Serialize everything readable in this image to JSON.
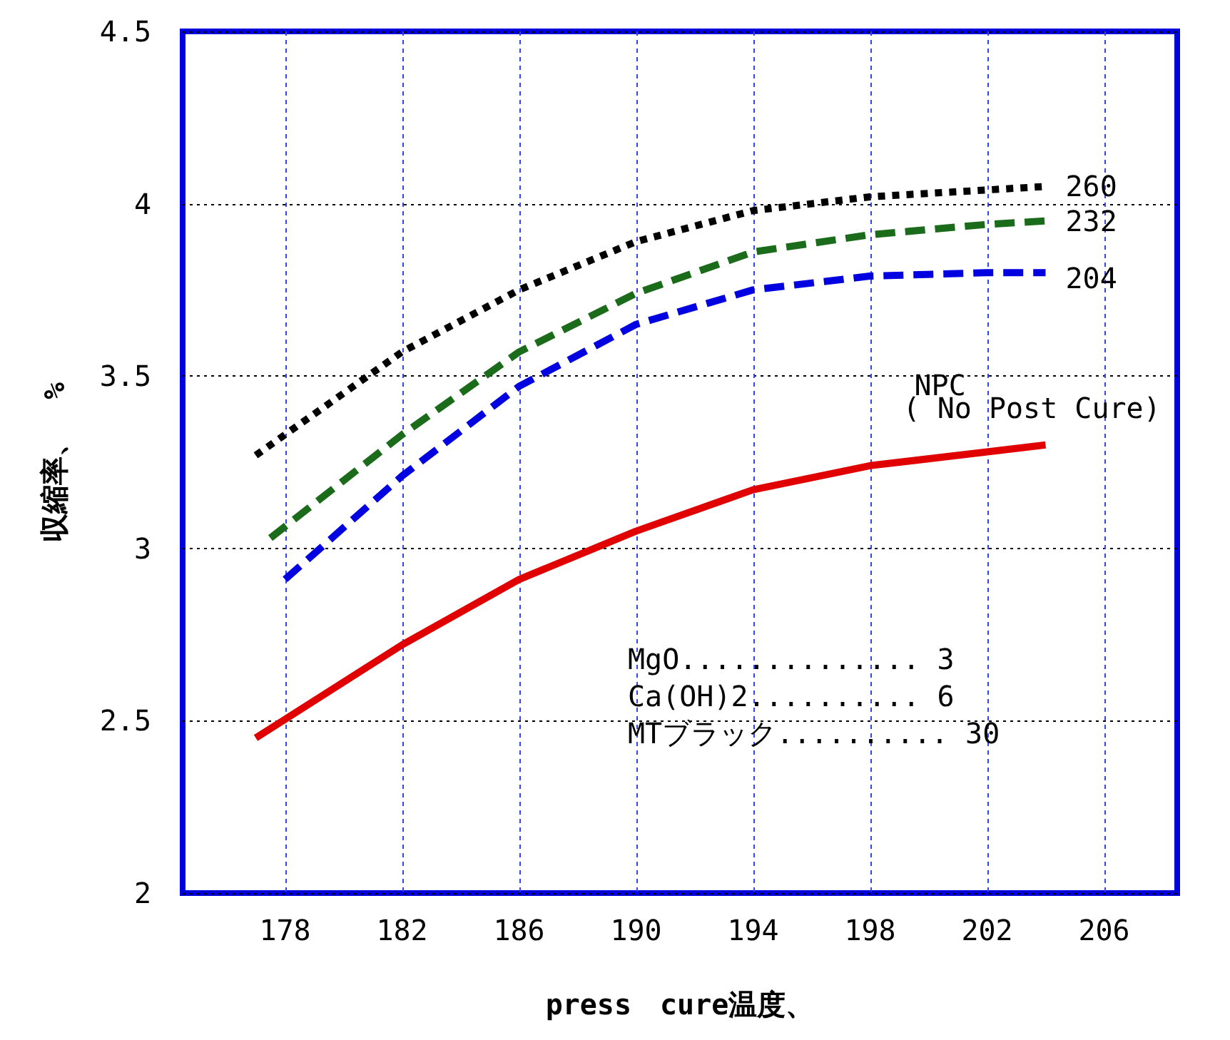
{
  "chart_data": {
    "type": "line",
    "xlabel": "press　cure温度、",
    "ylabel": "収縮率、　%",
    "xlim": [
      174.5,
      208.5
    ],
    "xticks": [
      178,
      182,
      186,
      190,
      194,
      198,
      202,
      206
    ],
    "ylim": [
      2,
      4.5
    ],
    "yticks": [
      2,
      2.5,
      3,
      3.5,
      4,
      4.5
    ],
    "grid": true,
    "legend": false,
    "marker": "none",
    "series": [
      {
        "name": "260",
        "color": "#000000",
        "line_style": "dotted",
        "x": [
          177,
          182,
          186,
          190,
          194,
          198,
          202,
          204
        ],
        "values": [
          3.27,
          3.57,
          3.75,
          3.89,
          3.98,
          4.02,
          4.04,
          4.05
        ]
      },
      {
        "name": "232",
        "color": "#1a6b1a",
        "line_style": "dashed",
        "x": [
          177.5,
          182,
          186,
          190,
          194,
          198,
          202,
          204
        ],
        "values": [
          3.03,
          3.33,
          3.57,
          3.74,
          3.86,
          3.91,
          3.94,
          3.95
        ]
      },
      {
        "name": "204",
        "color": "#0000e0",
        "line_style": "dashed",
        "x": [
          178,
          182,
          186,
          190,
          194,
          198,
          202,
          204
        ],
        "values": [
          2.91,
          3.21,
          3.47,
          3.65,
          3.75,
          3.79,
          3.8,
          3.8
        ]
      },
      {
        "name": "NPC",
        "color": "#e00000",
        "line_style": "solid",
        "x": [
          177,
          182,
          186,
          190,
          194,
          198,
          202,
          204
        ],
        "values": [
          2.45,
          2.72,
          2.91,
          3.05,
          3.17,
          3.24,
          3.28,
          3.3
        ]
      }
    ],
    "annotations": [
      {
        "text": "( No Post Cure)",
        "x": 204,
        "y": 3.3
      },
      "MgO.............. 3",
      "Ca(OH)2.......... 6",
      "MTブラック.......... 30"
    ]
  }
}
